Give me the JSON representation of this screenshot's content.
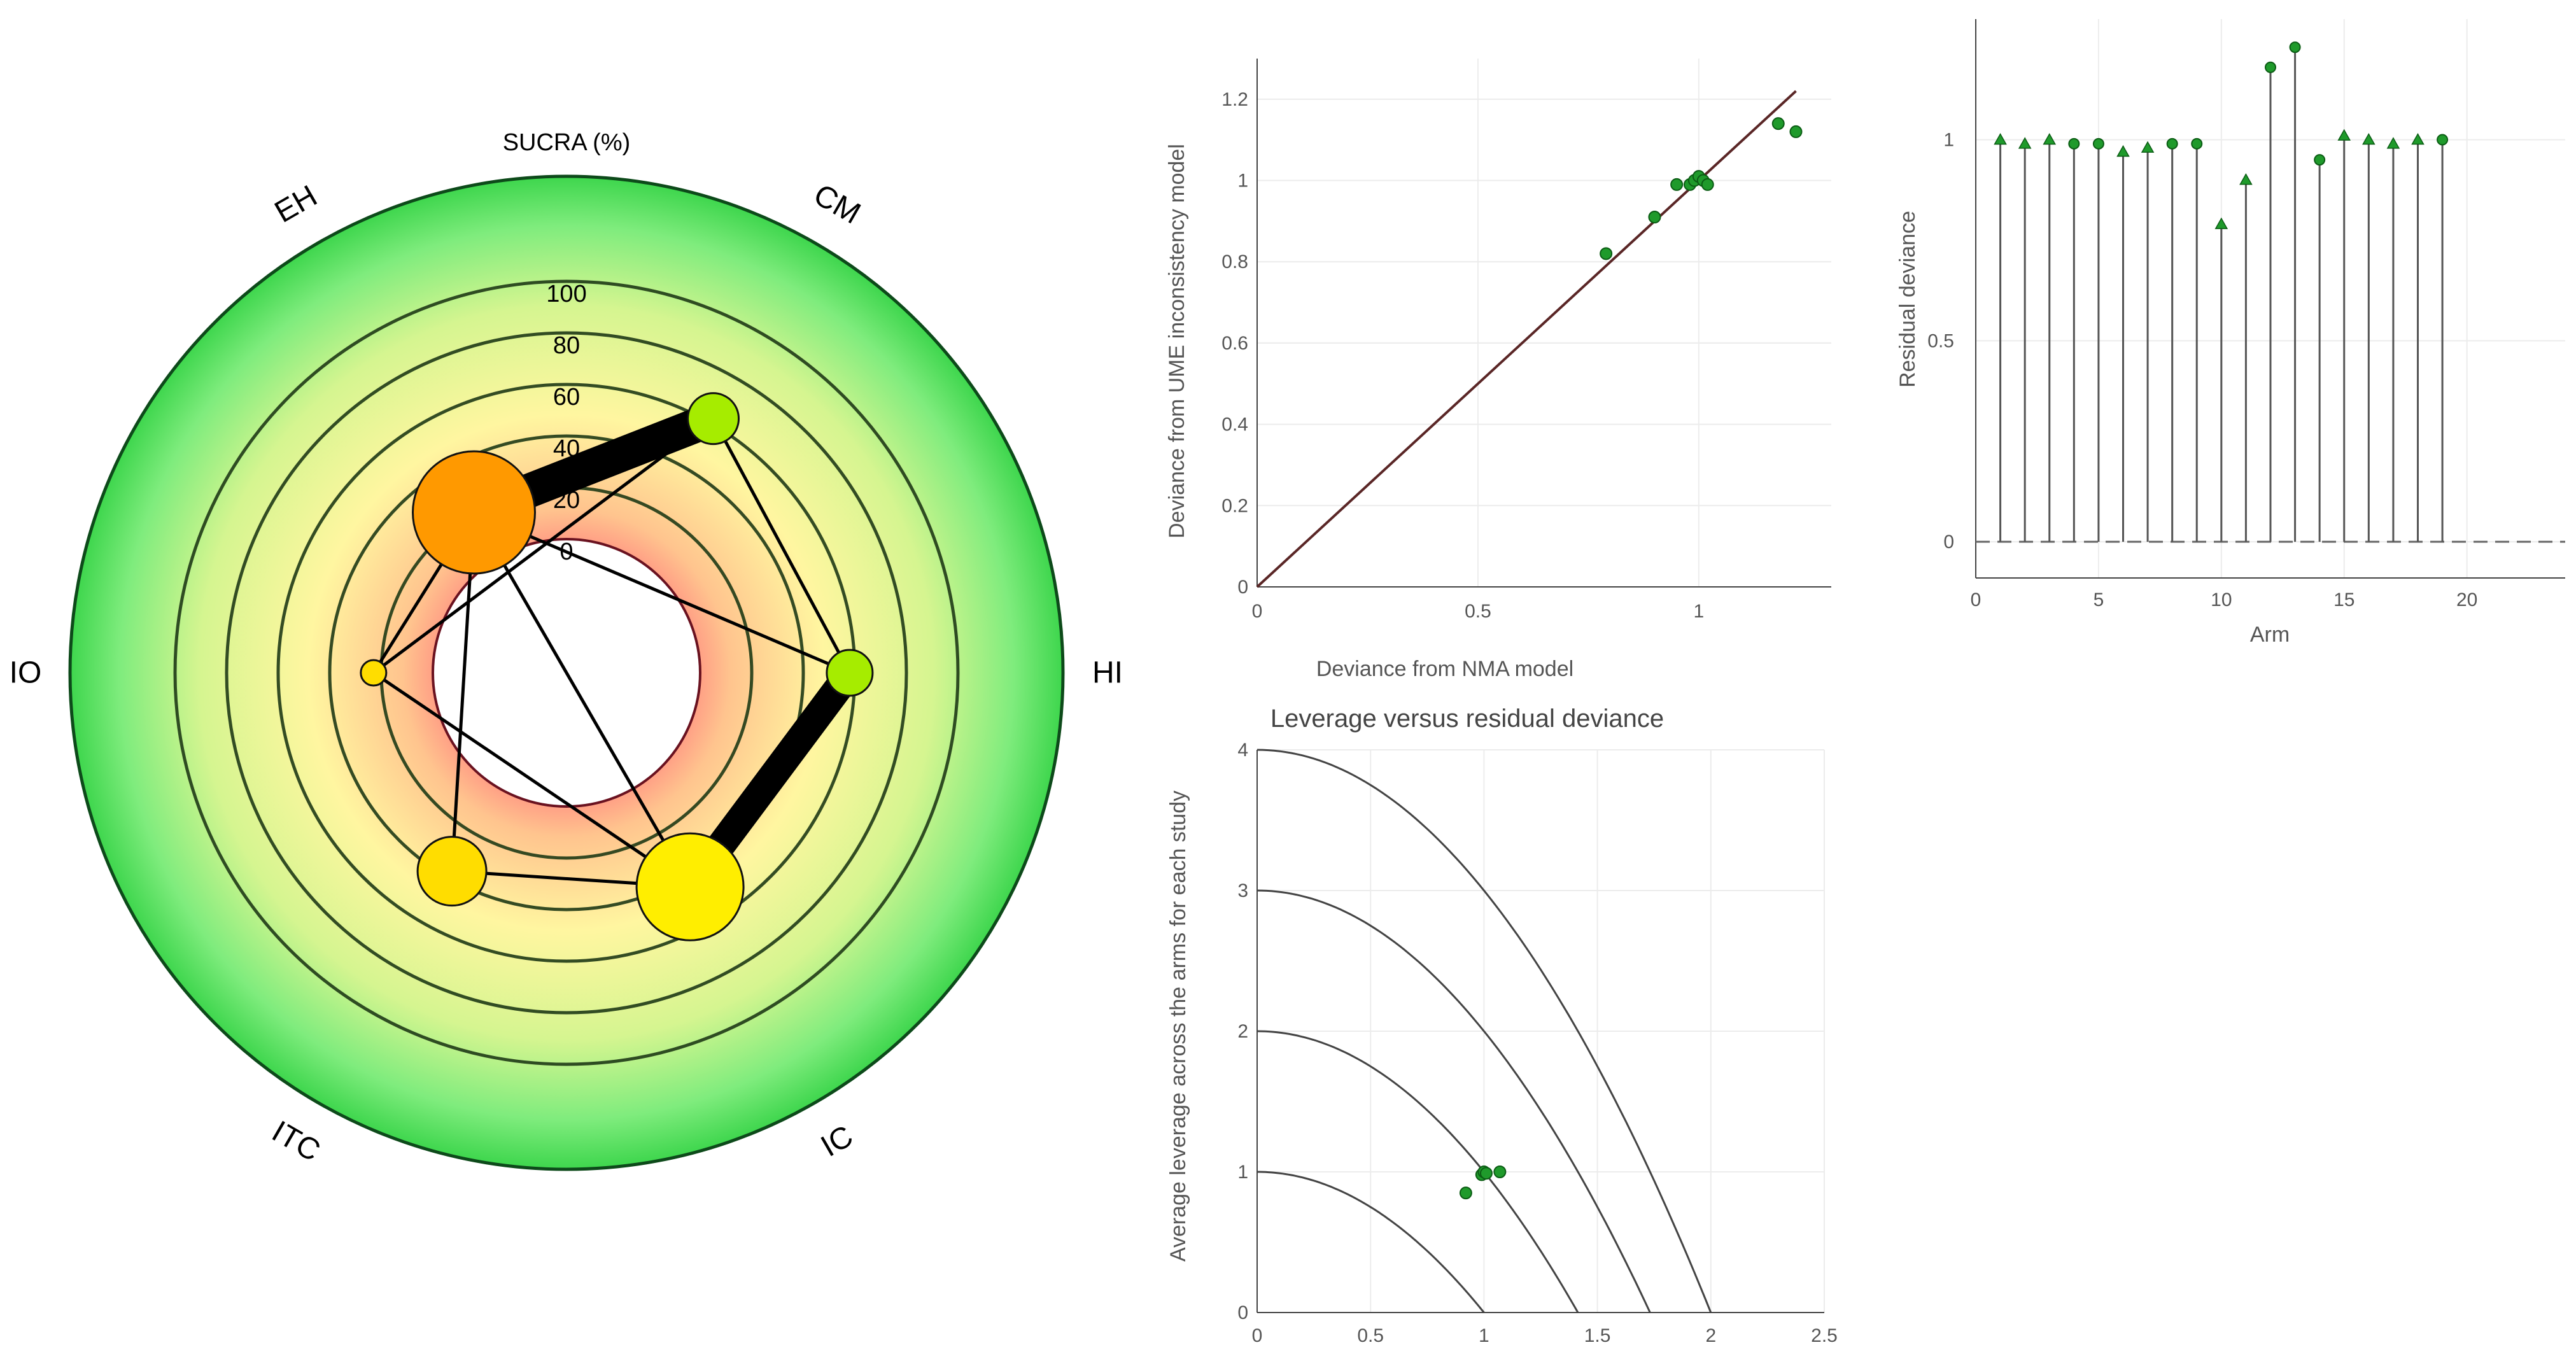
{
  "colors": {
    "marker": "#1f9a2b",
    "marker_edge": "#0b5c14",
    "identity_line": "#5a2626",
    "grid": "#ececec",
    "axis_text": "#555555"
  },
  "chart_data": [
    {
      "id": "radial",
      "type": "radar-network",
      "title": "SUCRA (%)",
      "scale_ticks": [
        "0",
        "20",
        "40",
        "60",
        "80",
        "100"
      ],
      "treatments": [
        {
          "label": "CM",
          "sucra": 62,
          "size": 40,
          "color": "#a6ec00"
        },
        {
          "label": "HI",
          "sucra": 58,
          "size": 36,
          "color": "#a6ec00"
        },
        {
          "label": "IC",
          "sucra": 44,
          "size": 84,
          "color": "#ffee00"
        },
        {
          "label": "ITC",
          "sucra": 37,
          "size": 54,
          "color": "#ffdd00"
        },
        {
          "label": "IO",
          "sucra": 23,
          "size": 20,
          "color": "#ffdd00"
        },
        {
          "label": "EH",
          "sucra": 20,
          "size": 96,
          "color": "#ff9900"
        }
      ],
      "edges": [
        {
          "from": "EH",
          "to": "CM",
          "weight": 6
        },
        {
          "from": "HI",
          "to": "IC",
          "weight": 5
        },
        {
          "from": "EH",
          "to": "HI",
          "weight": 1
        },
        {
          "from": "CM",
          "to": "IO",
          "weight": 1
        },
        {
          "from": "CM",
          "to": "HI",
          "weight": 1
        },
        {
          "from": "EH",
          "to": "IO",
          "weight": 1
        },
        {
          "from": "EH",
          "to": "ITC",
          "weight": 1
        },
        {
          "from": "EH",
          "to": "IC",
          "weight": 1
        },
        {
          "from": "IO",
          "to": "IC",
          "weight": 1
        },
        {
          "from": "ITC",
          "to": "IC",
          "weight": 1
        }
      ]
    },
    {
      "id": "dev_scatter",
      "type": "scatter",
      "title": "",
      "xlabel": "Deviance from NMA model",
      "ylabel": "Deviance from UME inconsistency model",
      "xlim": [
        0,
        1.3
      ],
      "ylim": [
        0,
        1.3
      ],
      "xticks": [
        0,
        0.5,
        1
      ],
      "xtick_labels": [
        "0",
        "0.5",
        "1"
      ],
      "yticks": [
        0,
        0.2,
        0.4,
        0.6,
        0.8,
        1,
        1.2
      ],
      "ytick_labels": [
        "0",
        "0.2",
        "0.4",
        "0.6",
        "0.8",
        "1",
        "1.2"
      ],
      "identity_line": [
        0,
        1.22
      ],
      "x": [
        0.79,
        0.9,
        0.95,
        0.98,
        0.99,
        1.0,
        1.01,
        1.02,
        1.18,
        1.22
      ],
      "y": [
        0.82,
        0.91,
        0.99,
        0.99,
        1.0,
        1.01,
        1.0,
        0.99,
        1.14,
        1.12
      ]
    },
    {
      "id": "residual_stem",
      "type": "stem",
      "title": "",
      "xlabel": "Arm",
      "ylabel": "Residual deviance",
      "xlim": [
        0,
        24
      ],
      "ylim": [
        -0.09,
        1.3
      ],
      "xticks": [
        0,
        5,
        10,
        15,
        20
      ],
      "xtick_labels": [
        "0",
        "5",
        "10",
        "15",
        "20"
      ],
      "yticks": [
        0,
        0.5,
        1
      ],
      "ytick_labels": [
        "0",
        "0.5",
        "1"
      ],
      "arms": [
        1,
        2,
        3,
        4,
        5,
        6,
        7,
        8,
        9,
        10,
        11,
        12,
        13,
        14,
        15,
        16,
        17,
        18,
        19
      ],
      "values": [
        1.0,
        0.99,
        1.0,
        0.99,
        0.99,
        0.97,
        0.98,
        0.99,
        0.99,
        0.79,
        0.9,
        1.18,
        1.23,
        0.95,
        1.01,
        1.0,
        0.99,
        1.0,
        1.0
      ],
      "markers": [
        "tri",
        "tri",
        "tri",
        "dot",
        "dot",
        "tri",
        "tri",
        "dot",
        "dot",
        "tri",
        "tri",
        "dot",
        "dot",
        "dot",
        "tri",
        "tri",
        "tri",
        "tri",
        "dot"
      ]
    },
    {
      "id": "leverage",
      "type": "scatter",
      "title": "Leverage versus residual deviance",
      "xlabel": "",
      "ylabel": "Average leverage across the arms for each study",
      "xlim": [
        0,
        2.5
      ],
      "ylim": [
        0,
        4
      ],
      "xticks": [
        0,
        0.5,
        1,
        1.5,
        2,
        2.5
      ],
      "xtick_labels": [
        "0",
        "0.5",
        "1",
        "1.5",
        "2",
        "2.5"
      ],
      "yticks": [
        0,
        1,
        2,
        3,
        4
      ],
      "ytick_labels": [
        "0",
        "1",
        "2",
        "3",
        "4"
      ],
      "contours": [
        1,
        2,
        3,
        4
      ],
      "x": [
        0.92,
        0.99,
        1.0,
        1.01,
        1.07
      ],
      "y": [
        0.85,
        0.98,
        1.0,
        0.99,
        1.0
      ]
    }
  ]
}
